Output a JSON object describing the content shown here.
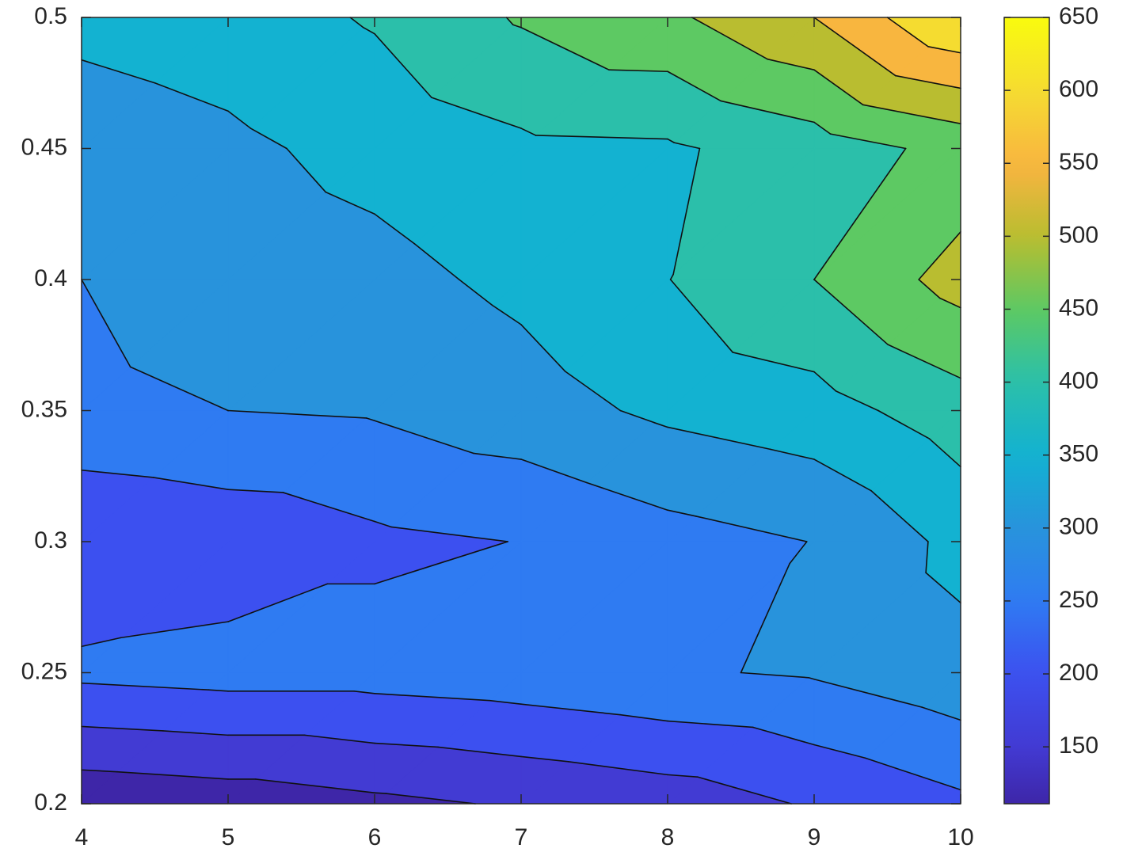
{
  "chart_data": {
    "type": "contourf",
    "x": [
      4,
      5,
      6,
      7,
      8,
      9,
      10
    ],
    "y": [
      0.2,
      0.25,
      0.3,
      0.35,
      0.4,
      0.45,
      0.5
    ],
    "z": [
      [
        111,
        122,
        139,
        155,
        173,
        205,
        240
      ],
      [
        262,
        271,
        271,
        280,
        295,
        305,
        334
      ],
      [
        202,
        217,
        240,
        251,
        281,
        301,
        364
      ],
      [
        290,
        300,
        305,
        329,
        360,
        379,
        427
      ],
      [
        300,
        320,
        335,
        361,
        399,
        450,
        520
      ],
      [
        325,
        340,
        365,
        390,
        393,
        425,
        465
      ],
      [
        362,
        375,
        405,
        455,
        490,
        550,
        650
      ]
    ],
    "levels": [
      150,
      200,
      250,
      300,
      350,
      400,
      450,
      500,
      550,
      600
    ],
    "xlim": [
      4,
      10
    ],
    "ylim": [
      0.2,
      0.5
    ],
    "xticks": [
      4,
      5,
      6,
      7,
      8,
      9,
      10
    ],
    "yticks": [
      0.2,
      0.25,
      0.3,
      0.35,
      0.4,
      0.45,
      0.5
    ],
    "clim": [
      111,
      650
    ],
    "cticks": [
      150,
      200,
      250,
      300,
      350,
      400,
      450,
      500,
      550,
      600,
      650
    ],
    "colormap": "parula",
    "colorbar": true
  }
}
